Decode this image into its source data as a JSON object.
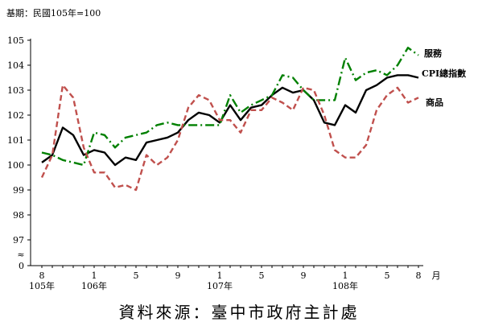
{
  "chart_data": {
    "type": "line",
    "base_note": "基期：民國105年=100",
    "x_unit": "月",
    "x": [
      "105-8",
      "105-9",
      "105-10",
      "105-11",
      "105-12",
      "106-1",
      "106-2",
      "106-3",
      "106-4",
      "106-5",
      "106-6",
      "106-7",
      "106-8",
      "106-9",
      "106-10",
      "106-11",
      "106-12",
      "107-1",
      "107-2",
      "107-3",
      "107-4",
      "107-5",
      "107-6",
      "107-7",
      "107-8",
      "107-9",
      "107-10",
      "107-11",
      "107-12",
      "108-1",
      "108-2",
      "108-3",
      "108-4",
      "108-5",
      "108-6",
      "108-7",
      "108-8"
    ],
    "x_ticks": [
      {
        "index": 0,
        "month": "8",
        "year": "105年"
      },
      {
        "index": 5,
        "month": "1",
        "year": "106年"
      },
      {
        "index": 9,
        "month": "5",
        "year": ""
      },
      {
        "index": 13,
        "month": "9",
        "year": ""
      },
      {
        "index": 17,
        "month": "1",
        "year": "107年"
      },
      {
        "index": 21,
        "month": "5",
        "year": ""
      },
      {
        "index": 25,
        "month": "9",
        "year": ""
      },
      {
        "index": 29,
        "month": "1",
        "year": "108年"
      },
      {
        "index": 33,
        "month": "5",
        "year": ""
      },
      {
        "index": 36,
        "month": "8",
        "year": ""
      }
    ],
    "y_ticks": [
      "105",
      "104",
      "103",
      "102",
      "101",
      "100",
      "99",
      "98",
      "97"
    ],
    "y_zero_label": "0",
    "axis_break_symbol": "≈",
    "ylim": [
      96,
      105
    ],
    "series": [
      {
        "name": "CPI總指數",
        "color": "#000000",
        "style": "solid",
        "values": [
          100.1,
          100.4,
          101.5,
          101.2,
          100.4,
          100.6,
          100.5,
          100.0,
          100.3,
          100.2,
          100.9,
          101.0,
          101.1,
          101.3,
          101.8,
          102.1,
          102.0,
          101.7,
          102.4,
          101.8,
          102.3,
          102.4,
          102.8,
          103.1,
          102.9,
          103.0,
          102.6,
          101.7,
          101.6,
          102.4,
          102.1,
          103.0,
          103.2,
          103.5,
          103.6,
          103.6,
          103.5
        ]
      },
      {
        "name": "服務",
        "color": "#008000",
        "style": "dashdot",
        "values": [
          100.5,
          100.4,
          100.2,
          100.1,
          100.0,
          101.3,
          101.2,
          100.7,
          101.1,
          101.2,
          101.3,
          101.6,
          101.7,
          101.6,
          101.6,
          101.6,
          101.6,
          101.6,
          102.8,
          102.1,
          102.4,
          102.6,
          102.8,
          103.6,
          103.5,
          103.0,
          102.6,
          102.6,
          102.6,
          104.3,
          103.4,
          103.7,
          103.8,
          103.6,
          104.0,
          104.7,
          104.4
        ]
      },
      {
        "name": "商品",
        "color": "#c0504d",
        "style": "dashed",
        "values": [
          99.5,
          100.4,
          103.2,
          102.7,
          100.7,
          99.7,
          99.7,
          99.1,
          99.2,
          99.0,
          100.4,
          100.0,
          100.3,
          101.0,
          102.3,
          102.8,
          102.6,
          101.8,
          101.8,
          101.3,
          102.2,
          102.2,
          102.7,
          102.5,
          102.2,
          103.1,
          103.0,
          102.0,
          100.6,
          100.3,
          100.3,
          100.8,
          102.2,
          102.8,
          103.1,
          102.5,
          102.7
        ]
      }
    ]
  },
  "footer": {
    "source": "資料來源：臺中市政府主計處"
  }
}
